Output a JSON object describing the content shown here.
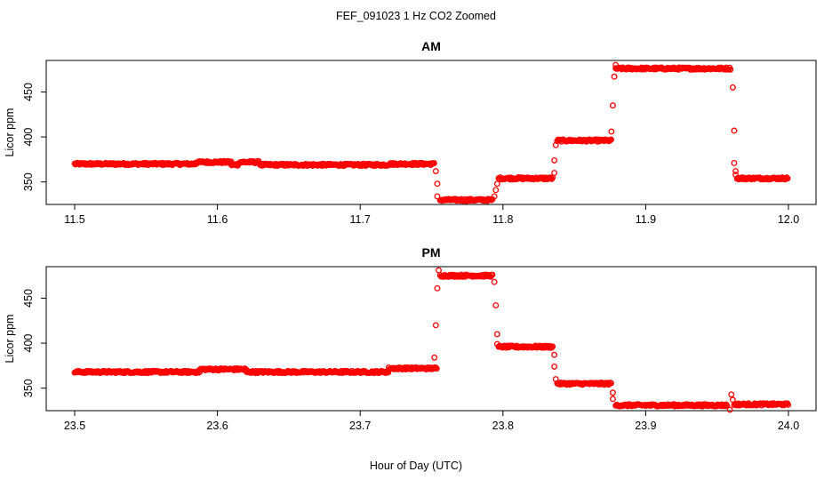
{
  "figure": {
    "title": "FEF_091023  1 Hz CO2 Zoomed",
    "xlabel": "Hour of Day (UTC)"
  },
  "chart_data": [
    {
      "type": "scatter",
      "title": "AM",
      "ylabel": "Licor ppm",
      "xlim": [
        11.5,
        12.0
      ],
      "ylim": [
        325,
        485
      ],
      "xticks": [
        "11.5",
        "11.6",
        "11.7",
        "11.8",
        "11.9",
        "12.0"
      ],
      "yticks": [
        "350",
        "400",
        "450"
      ],
      "marker_color": "#ff0000",
      "marker": "open-circle",
      "segments": [
        {
          "x_start": 11.5,
          "x_end": 11.585,
          "y": 370
        },
        {
          "x_start": 11.585,
          "x_end": 11.61,
          "y": 372
        },
        {
          "x_start": 11.61,
          "x_end": 11.615,
          "y": 369
        },
        {
          "x_start": 11.615,
          "x_end": 11.63,
          "y": 372
        },
        {
          "x_start": 11.63,
          "x_end": 11.72,
          "y": 369
        },
        {
          "x_start": 11.72,
          "x_end": 11.752,
          "y": 370
        },
        {
          "x_start": 11.756,
          "x_end": 11.793,
          "y": 330
        },
        {
          "x_start": 11.797,
          "x_end": 11.835,
          "y": 354
        },
        {
          "x_start": 11.838,
          "x_end": 11.876,
          "y": 396
        },
        {
          "x_start": 11.879,
          "x_end": 11.96,
          "y": 476
        },
        {
          "x_start": 11.964,
          "x_end": 12.0,
          "y": 354
        }
      ],
      "transition_points": [
        {
          "x": 11.753,
          "y": 362
        },
        {
          "x": 11.754,
          "y": 348
        },
        {
          "x": 11.754,
          "y": 334
        },
        {
          "x": 11.794,
          "y": 334
        },
        {
          "x": 11.795,
          "y": 341
        },
        {
          "x": 11.796,
          "y": 348
        },
        {
          "x": 11.836,
          "y": 360
        },
        {
          "x": 11.836,
          "y": 374
        },
        {
          "x": 11.837,
          "y": 391
        },
        {
          "x": 11.876,
          "y": 406
        },
        {
          "x": 11.877,
          "y": 435
        },
        {
          "x": 11.878,
          "y": 467
        },
        {
          "x": 11.879,
          "y": 480
        },
        {
          "x": 11.961,
          "y": 455
        },
        {
          "x": 11.962,
          "y": 407
        },
        {
          "x": 11.962,
          "y": 371
        },
        {
          "x": 11.963,
          "y": 362
        },
        {
          "x": 11.963,
          "y": 358
        }
      ]
    },
    {
      "type": "scatter",
      "title": "PM",
      "ylabel": "Licor ppm",
      "xlim": [
        23.5,
        24.0
      ],
      "ylim": [
        325,
        485
      ],
      "xticks": [
        "23.5",
        "23.6",
        "23.7",
        "23.8",
        "23.9",
        "24.0"
      ],
      "yticks": [
        "350",
        "400",
        "450"
      ],
      "marker_color": "#ff0000",
      "marker": "open-circle",
      "segments": [
        {
          "x_start": 23.5,
          "x_end": 23.588,
          "y": 368
        },
        {
          "x_start": 23.588,
          "x_end": 23.62,
          "y": 371
        },
        {
          "x_start": 23.62,
          "x_end": 23.72,
          "y": 368
        },
        {
          "x_start": 23.72,
          "x_end": 23.754,
          "y": 372
        },
        {
          "x_start": 23.756,
          "x_end": 23.793,
          "y": 475
        },
        {
          "x_start": 23.797,
          "x_end": 23.835,
          "y": 396
        },
        {
          "x_start": 23.838,
          "x_end": 23.876,
          "y": 355
        },
        {
          "x_start": 23.879,
          "x_end": 23.957,
          "y": 331
        },
        {
          "x_start": 23.962,
          "x_end": 24.0,
          "y": 332
        }
      ],
      "transition_points": [
        {
          "x": 23.752,
          "y": 384
        },
        {
          "x": 23.753,
          "y": 420
        },
        {
          "x": 23.754,
          "y": 461
        },
        {
          "x": 23.755,
          "y": 481
        },
        {
          "x": 23.794,
          "y": 468
        },
        {
          "x": 23.795,
          "y": 442
        },
        {
          "x": 23.796,
          "y": 410
        },
        {
          "x": 23.796,
          "y": 399
        },
        {
          "x": 23.836,
          "y": 387
        },
        {
          "x": 23.836,
          "y": 374
        },
        {
          "x": 23.837,
          "y": 360
        },
        {
          "x": 23.877,
          "y": 345
        },
        {
          "x": 23.877,
          "y": 338
        },
        {
          "x": 23.959,
          "y": 326
        },
        {
          "x": 23.96,
          "y": 343
        },
        {
          "x": 23.961,
          "y": 337
        }
      ]
    }
  ]
}
